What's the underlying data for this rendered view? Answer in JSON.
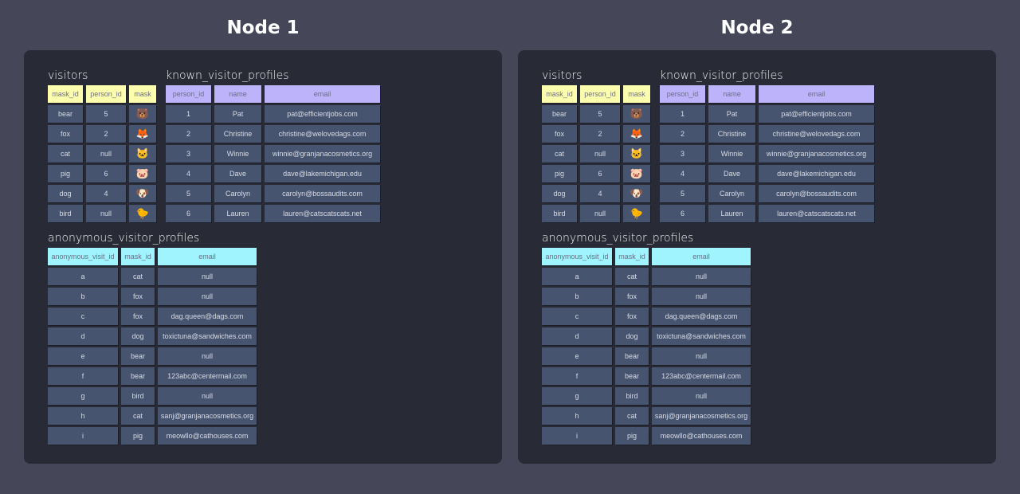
{
  "nodes": [
    {
      "title": "Node 1"
    },
    {
      "title": "Node 2"
    }
  ],
  "tables": {
    "visitors": {
      "title": "visitors",
      "columns": [
        "mask_id",
        "person_id",
        "mask"
      ],
      "rows": [
        [
          "bear",
          "5",
          "🐻"
        ],
        [
          "fox",
          "2",
          "🦊"
        ],
        [
          "cat",
          "null",
          "🐱"
        ],
        [
          "pig",
          "6",
          "🐷"
        ],
        [
          "dog",
          "4",
          "🐶"
        ],
        [
          "bird",
          "null",
          "🐤"
        ]
      ]
    },
    "known_visitor_profiles": {
      "title": "known_visitor_profiles",
      "columns": [
        "person_id",
        "name",
        "email"
      ],
      "rows": [
        [
          "1",
          "Pat",
          "pat@efficientjobs.com"
        ],
        [
          "2",
          "Christine",
          "christine@welovedags.com"
        ],
        [
          "3",
          "Winnie",
          "winnie@granjanacosmetics.org"
        ],
        [
          "4",
          "Dave",
          "dave@lakemichigan.edu"
        ],
        [
          "5",
          "Carolyn",
          "carolyn@bossaudits.com"
        ],
        [
          "6",
          "Lauren",
          "lauren@catscatscats.net"
        ]
      ]
    },
    "anonymous_visitor_profiles": {
      "title": "anonymous_visitor_profiles",
      "columns": [
        "anonymous_visit_id",
        "mask_id",
        "email"
      ],
      "rows": [
        [
          "a",
          "cat",
          "null"
        ],
        [
          "b",
          "fox",
          "null"
        ],
        [
          "c",
          "fox",
          "dag.queen@dags.com"
        ],
        [
          "d",
          "dog",
          "toxictuna@sandwiches.com"
        ],
        [
          "e",
          "bear",
          "null"
        ],
        [
          "f",
          "bear",
          "123abc@centermail.com"
        ],
        [
          "g",
          "bird",
          "null"
        ],
        [
          "h",
          "cat",
          "sanj@granjanacosmetics.org"
        ],
        [
          "i",
          "pig",
          "meowllo@cathouses.com"
        ]
      ]
    }
  },
  "colors": {
    "visitors_header": "#fdfdae",
    "known_header": "#bdb3fb",
    "anonymous_header": "#9ff4fd",
    "cell": "#465470",
    "panel": "#282a36",
    "background": "#454759"
  }
}
